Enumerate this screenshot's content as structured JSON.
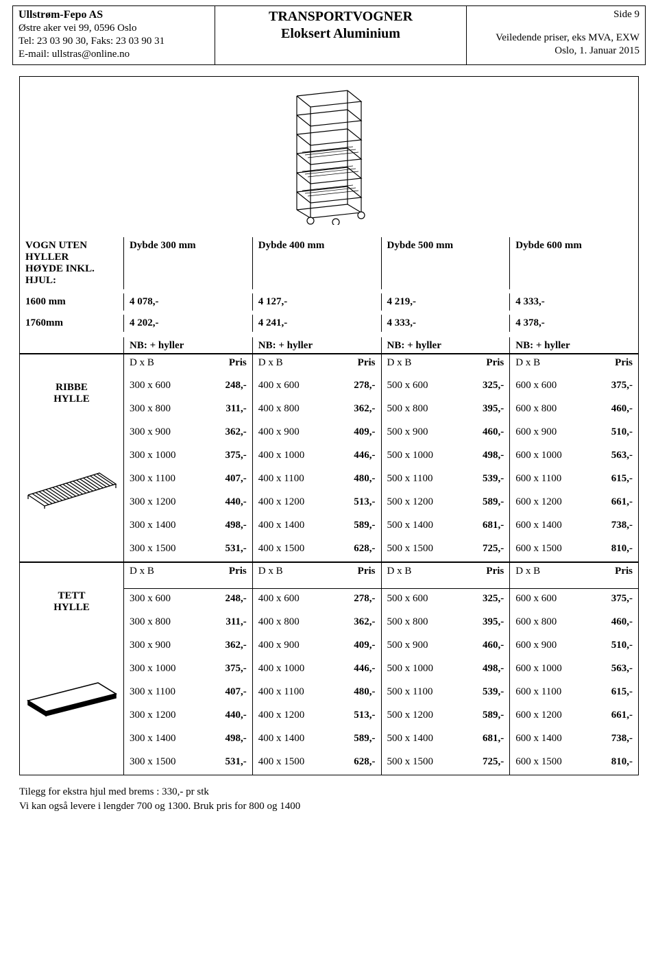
{
  "header": {
    "company": "Ullstrøm-Fepo AS",
    "address": "Østre aker vei 99, 0596 Oslo",
    "contact": "Tel: 23 03 90 30, Faks: 23 03 90 31",
    "email": "E-mail: ullstras@online.no",
    "title_line1": "TRANSPORTVOGNER",
    "title_line2": "Eloksert Aluminium",
    "page": "Side 9",
    "price_note": "Veiledende priser, eks MVA, EXW",
    "date": "Oslo, 1. Januar 2015"
  },
  "vogn": {
    "row_label": "VOGN UTEN\nHYLLER\nHØYDE INKL.\nHJUL:",
    "col_headers": [
      "Dybde 300 mm",
      "Dybde 400 mm",
      "Dybde 500 mm",
      "Dybde 600 mm"
    ],
    "height_rows": [
      {
        "label": "1600 mm",
        "prices": [
          "4 078,-",
          "4 127,-",
          "4 219,-",
          "4 333,-"
        ]
      },
      {
        "label": "1760mm",
        "prices": [
          "4 202,-",
          "4 241,-",
          "4 333,-",
          "4 378,-"
        ]
      }
    ],
    "nb_note": "NB: + hyller"
  },
  "dxb_header": "D x B",
  "pris_header": "Pris",
  "sections": [
    {
      "label": "RIBBE\nHYLLE",
      "illustration": "ribbe",
      "cols": [
        {
          "rows": [
            {
              "dxb": "300 x  600",
              "pris": "248,-"
            },
            {
              "dxb": "300 x  800",
              "pris": "311,-"
            },
            {
              "dxb": "300 x  900",
              "pris": "362,-"
            },
            {
              "dxb": "300 x 1000",
              "pris": "375,-"
            },
            {
              "dxb": "300 x 1100",
              "pris": "407,-"
            },
            {
              "dxb": "300 x 1200",
              "pris": "440,-"
            },
            {
              "dxb": "300 x 1400",
              "pris": "498,-"
            },
            {
              "dxb": " 300 x 1500",
              "pris": "531,-"
            }
          ]
        },
        {
          "rows": [
            {
              "dxb": "400 x  600",
              "pris": "278,-"
            },
            {
              "dxb": "400 x  800",
              "pris": "362,-"
            },
            {
              "dxb": "400 x  900",
              "pris": "409,-"
            },
            {
              "dxb": "400 x 1000",
              "pris": "446,-"
            },
            {
              "dxb": "400 x 1100",
              "pris": "480,-"
            },
            {
              "dxb": "400 x 1200",
              "pris": "513,-"
            },
            {
              "dxb": "400 x 1400",
              "pris": "589,-"
            },
            {
              "dxb": " 400 x 1500",
              "pris": "628,-"
            }
          ]
        },
        {
          "rows": [
            {
              "dxb": "500 x  600",
              "pris": "325,-"
            },
            {
              "dxb": "500 x  800",
              "pris": "395,-"
            },
            {
              "dxb": "500 x  900",
              "pris": "460,-"
            },
            {
              "dxb": "500 x 1000",
              "pris": "498,-"
            },
            {
              "dxb": "500 x 1100",
              "pris": "539,-"
            },
            {
              "dxb": "500 x 1200",
              "pris": "589,-"
            },
            {
              "dxb": "500 x 1400",
              "pris": "681,-"
            },
            {
              "dxb": " 500 x 1500",
              "pris": "725,-"
            }
          ]
        },
        {
          "rows": [
            {
              "dxb": "600 x  600",
              "pris": "375,-"
            },
            {
              "dxb": "600 x  800",
              "pris": "460,-"
            },
            {
              "dxb": "600 x  900",
              "pris": "510,-"
            },
            {
              "dxb": "600 x 1000",
              "pris": "563,-"
            },
            {
              "dxb": "600 x 1100",
              "pris": "615,-"
            },
            {
              "dxb": "600 x 1200",
              "pris": "661,-"
            },
            {
              "dxb": "600 x 1400",
              "pris": "738,-"
            },
            {
              "dxb": " 600 x 1500",
              "pris": "810,-"
            }
          ]
        }
      ]
    },
    {
      "label": "TETT\nHYLLE",
      "illustration": "tett",
      "cols": [
        {
          "rows": [
            {
              "dxb": "300 x  600",
              "pris": "248,-"
            },
            {
              "dxb": "300 x  800",
              "pris": "311,-"
            },
            {
              "dxb": "300 x  900",
              "pris": "362,-"
            },
            {
              "dxb": "300 x 1000",
              "pris": "375,-"
            },
            {
              "dxb": "300 x 1100",
              "pris": "407,-"
            },
            {
              "dxb": "300 x 1200",
              "pris": "440,-"
            },
            {
              "dxb": "300 x 1400",
              "pris": "498,-"
            },
            {
              "dxb": " 300 x 1500",
              "pris": "531,-"
            }
          ]
        },
        {
          "rows": [
            {
              "dxb": "400 x  600",
              "pris": "278,-"
            },
            {
              "dxb": "400 x  800",
              "pris": "362,-"
            },
            {
              "dxb": "400 x  900",
              "pris": "409,-"
            },
            {
              "dxb": "400 x 1000",
              "pris": "446,-"
            },
            {
              "dxb": "400 x 1100",
              "pris": "480,-"
            },
            {
              "dxb": "400 x 1200",
              "pris": "513,-"
            },
            {
              "dxb": "400 x 1400",
              "pris": "589,-"
            },
            {
              "dxb": " 400 x 1500",
              "pris": "628,-"
            }
          ]
        },
        {
          "rows": [
            {
              "dxb": "500 x  600",
              "pris": "325,-"
            },
            {
              "dxb": "500 x  800",
              "pris": "395,-"
            },
            {
              "dxb": "500 x  900",
              "pris": "460,-"
            },
            {
              "dxb": "500 x 1000",
              "pris": "498,-"
            },
            {
              "dxb": "500 x 1100",
              "pris": "539,-"
            },
            {
              "dxb": "500 x 1200",
              "pris": "589,-"
            },
            {
              "dxb": "500 x 1400",
              "pris": "681,-"
            },
            {
              "dxb": " 500 x 1500",
              "pris": "725,-"
            }
          ]
        },
        {
          "rows": [
            {
              "dxb": "600 x  600",
              "pris": "375,-"
            },
            {
              "dxb": "600 x  800",
              "pris": "460,-"
            },
            {
              "dxb": "600 x  900",
              "pris": "510,-"
            },
            {
              "dxb": "600 x 1000",
              "pris": "563,-"
            },
            {
              "dxb": "600 x 1100",
              "pris": "615,-"
            },
            {
              "dxb": "600 x 1200",
              "pris": "661,-"
            },
            {
              "dxb": "600 x 1400",
              "pris": "738,-"
            },
            {
              "dxb": " 600 x 1500",
              "pris": "810,-"
            }
          ]
        }
      ]
    }
  ],
  "footer": {
    "line1": "Tilegg for ekstra hjul med brems :  330,- pr stk",
    "line2": "Vi kan også levere i lengder 700 og 1300.   Bruk pris for 800 og 1400"
  }
}
